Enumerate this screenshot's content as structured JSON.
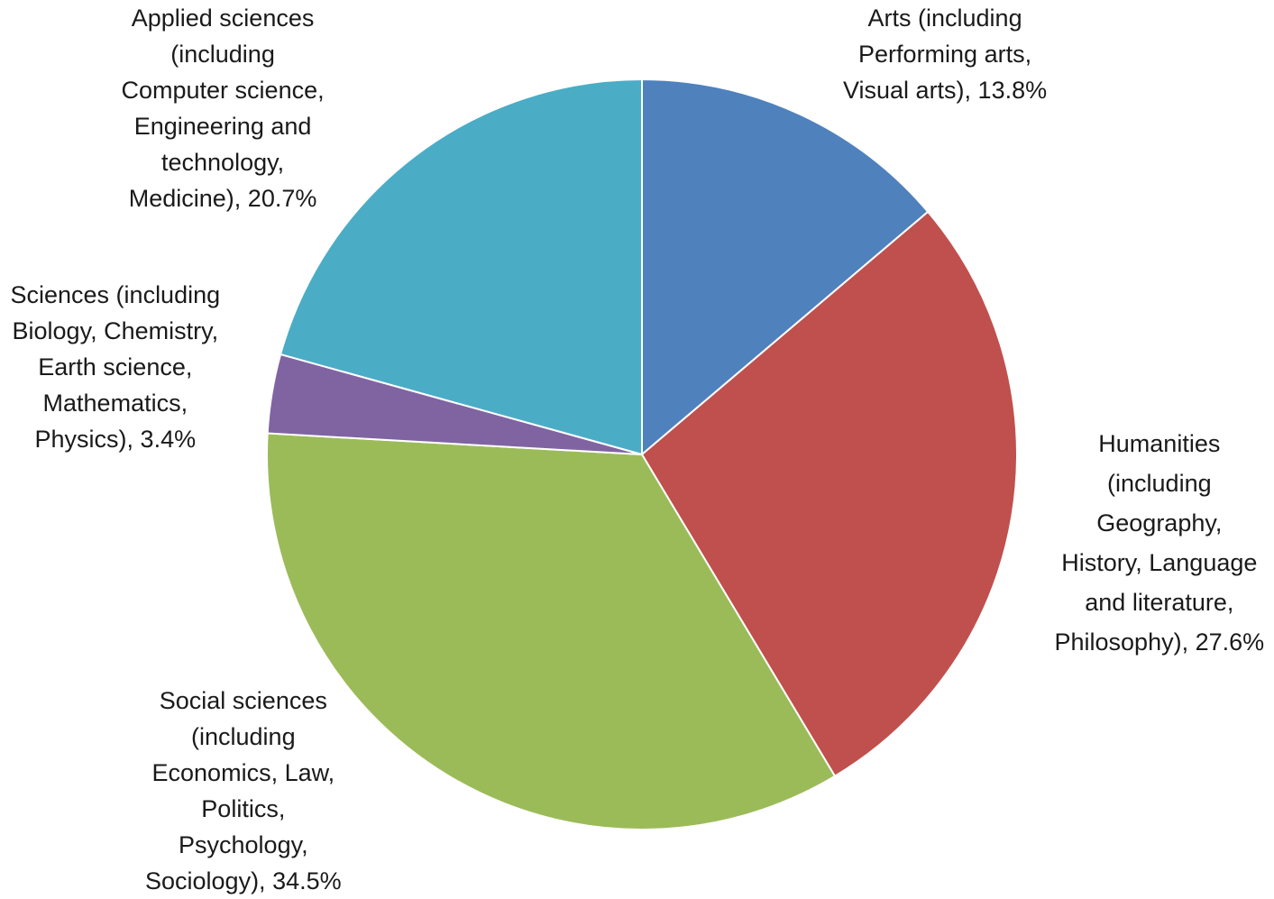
{
  "chart_data": {
    "type": "pie",
    "title": "",
    "start_angle_deg": 0,
    "direction": "clockwise",
    "slices": [
      {
        "lines": [
          "Arts (including",
          "Performing arts,",
          "Visual arts), 13.8%"
        ],
        "value": 13.8,
        "color": "#4F81BD"
      },
      {
        "lines": [
          "Humanities",
          "(including",
          "Geography,",
          "History, Language",
          "and literature,",
          "Philosophy), 27.6%"
        ],
        "value": 27.6,
        "color": "#C0504D"
      },
      {
        "lines": [
          "Social sciences",
          "(including",
          "Economics, Law,",
          "Politics,",
          "Psychology,",
          "Sociology), 34.5%"
        ],
        "value": 34.5,
        "color": "#9BBB59"
      },
      {
        "lines": [
          "Sciences (including",
          "Biology, Chemistry,",
          "Earth science,",
          "Mathematics,",
          "Physics), 3.4%"
        ],
        "value": 3.4,
        "color": "#8064A2"
      },
      {
        "lines": [
          "Applied sciences",
          "(including",
          "Computer science,",
          "Engineering and",
          "technology,",
          "Medicine), 20.7%"
        ],
        "value": 20.7,
        "color": "#4BACC6"
      }
    ]
  }
}
